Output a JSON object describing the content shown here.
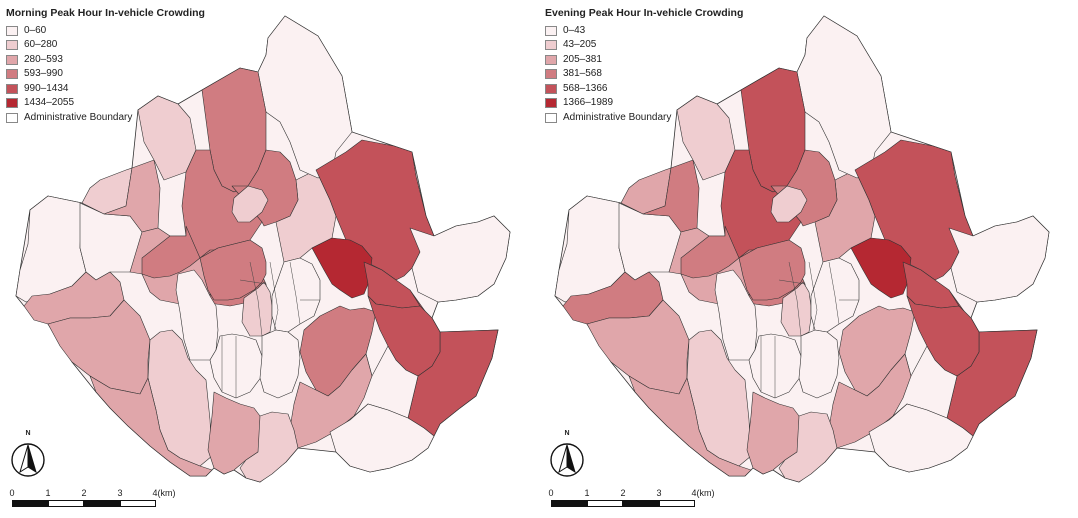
{
  "maps": [
    {
      "id": "morning",
      "title": "Morning Peak Hour In-vehicle Crowding",
      "legend": [
        {
          "label": "0–60",
          "color": "#fbf1f2"
        },
        {
          "label": "60–280",
          "color": "#efcdd0"
        },
        {
          "label": "280–593",
          "color": "#e0a6aa"
        },
        {
          "label": "593–990",
          "color": "#d07c81"
        },
        {
          "label": "990–1434",
          "color": "#c3525a"
        },
        {
          "label": "1434–2055",
          "color": "#b52832"
        },
        {
          "label": "Administrative Boundary",
          "color": "#ffffff"
        }
      ],
      "district_classes": [
        0,
        0,
        0,
        2,
        1,
        3,
        3,
        4,
        5,
        4,
        3,
        2,
        2,
        2,
        0,
        1,
        0,
        0,
        0,
        1,
        2,
        3,
        2,
        1,
        0,
        4,
        3,
        3,
        3,
        2,
        1,
        0
      ]
    },
    {
      "id": "evening",
      "title": "Evening Peak Hour In-vehicle Crowding",
      "legend": [
        {
          "label": "0–43",
          "color": "#fbf1f2"
        },
        {
          "label": "43–205",
          "color": "#efcdd0"
        },
        {
          "label": "205–381",
          "color": "#e0a6aa"
        },
        {
          "label": "381–568",
          "color": "#d07c81"
        },
        {
          "label": "568–1366",
          "color": "#c3525a"
        },
        {
          "label": "1366–1989",
          "color": "#b52832"
        },
        {
          "label": "Administrative Boundary",
          "color": "#ffffff"
        }
      ],
      "district_classes": [
        0,
        0,
        0,
        3,
        1,
        4,
        4,
        4,
        5,
        4,
        3,
        2,
        3,
        2,
        0,
        1,
        0,
        0,
        0,
        1,
        2,
        2,
        2,
        1,
        0,
        4,
        3,
        3,
        3,
        2,
        1,
        0
      ]
    }
  ],
  "north_arrow": {
    "label": "N",
    "icon": "north-arrow-icon"
  },
  "scale_bar": {
    "ticks": [
      "0",
      "1",
      "2",
      "3",
      "4(km)"
    ]
  }
}
